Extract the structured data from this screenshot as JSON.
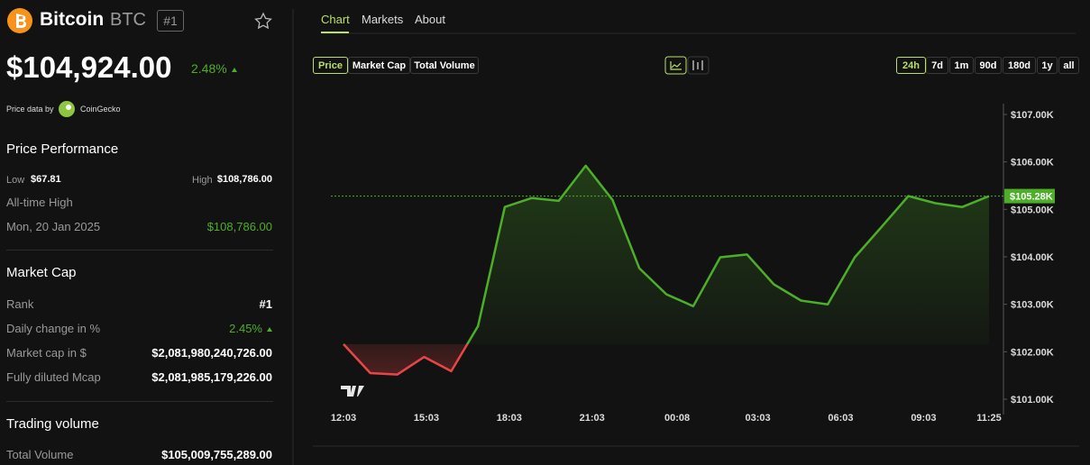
{
  "header": {
    "name": "Bitcoin",
    "symbol": "BTC",
    "rank": "#1",
    "price": "$104,924.00",
    "change": "2.48%",
    "source_prefix": "Price data by",
    "source": "CoinGecko"
  },
  "performance": {
    "title": "Price Performance",
    "low_label": "Low",
    "low": "$67.81",
    "high_label": "High",
    "high": "$108,786.00",
    "ath_label": "All-time High",
    "ath_date": "Mon, 20 Jan 2025",
    "ath": "$108,786.00"
  },
  "market_cap": {
    "title": "Market Cap",
    "rows": [
      [
        "Rank",
        "#1"
      ],
      [
        "Daily change in %",
        "2.45%"
      ],
      [
        "Market cap in $",
        "$2,081,980,240,726.00"
      ],
      [
        "Fully diluted Mcap",
        "$2,081,985,179,226.00"
      ]
    ]
  },
  "trading_volume": {
    "title": "Trading volume",
    "rows": [
      [
        "Total Volume",
        "$105,009,755,289.00"
      ]
    ]
  },
  "tabs": [
    "Chart",
    "Markets",
    "About"
  ],
  "metrics": [
    "Price",
    "Market Cap",
    "Total Volume"
  ],
  "ranges": [
    "24h",
    "7d",
    "1m",
    "90d",
    "180d",
    "1y",
    "all"
  ],
  "chart_data": {
    "type": "line",
    "x": [
      0,
      0.97,
      1.95,
      2.92,
      3.9,
      4.87,
      5.84,
      6.82,
      7.79,
      8.77,
      9.74,
      10.71,
      11.69,
      12.66,
      13.64,
      14.61,
      15.58,
      16.56,
      17.53,
      18.51,
      19.48,
      20.45,
      21.43,
      22.4,
      23.37
    ],
    "xlim": [
      0,
      23.37
    ],
    "xticks": [
      {
        "value": 0,
        "label": "12:03"
      },
      {
        "value": 3,
        "label": "15:03"
      },
      {
        "value": 6,
        "label": "18:03"
      },
      {
        "value": 9,
        "label": "21:03"
      },
      {
        "value": 12.08,
        "label": "00:08"
      },
      {
        "value": 15,
        "label": "03:03"
      },
      {
        "value": 18,
        "label": "06:03"
      },
      {
        "value": 21,
        "label": "09:03"
      },
      {
        "value": 23.37,
        "label": "11:25"
      }
    ],
    "ylim": [
      101000,
      107000
    ],
    "yticks": [
      {
        "value": 101000,
        "label": "$101.00K"
      },
      {
        "value": 102000,
        "label": "$102.00K"
      },
      {
        "value": 103000,
        "label": "$103.00K"
      },
      {
        "value": 104000,
        "label": "$104.00K"
      },
      {
        "value": 105000,
        "label": "$105.00K"
      },
      {
        "value": 106000,
        "label": "$106.00K"
      },
      {
        "value": 107000,
        "label": "$107.00K"
      }
    ],
    "series": [
      {
        "name": "Price",
        "values": [
          102160,
          101550,
          101520,
          101890,
          101590,
          102540,
          105050,
          105240,
          105180,
          105920,
          105200,
          103760,
          103210,
          102960,
          103990,
          104050,
          103420,
          103080,
          103000,
          103990,
          104630,
          105280,
          105130,
          105050,
          105280
        ]
      }
    ],
    "last_value": {
      "value": 105280,
      "label": "$105.28K"
    },
    "up_color": "#4caf27",
    "down_color": "#e84545"
  }
}
